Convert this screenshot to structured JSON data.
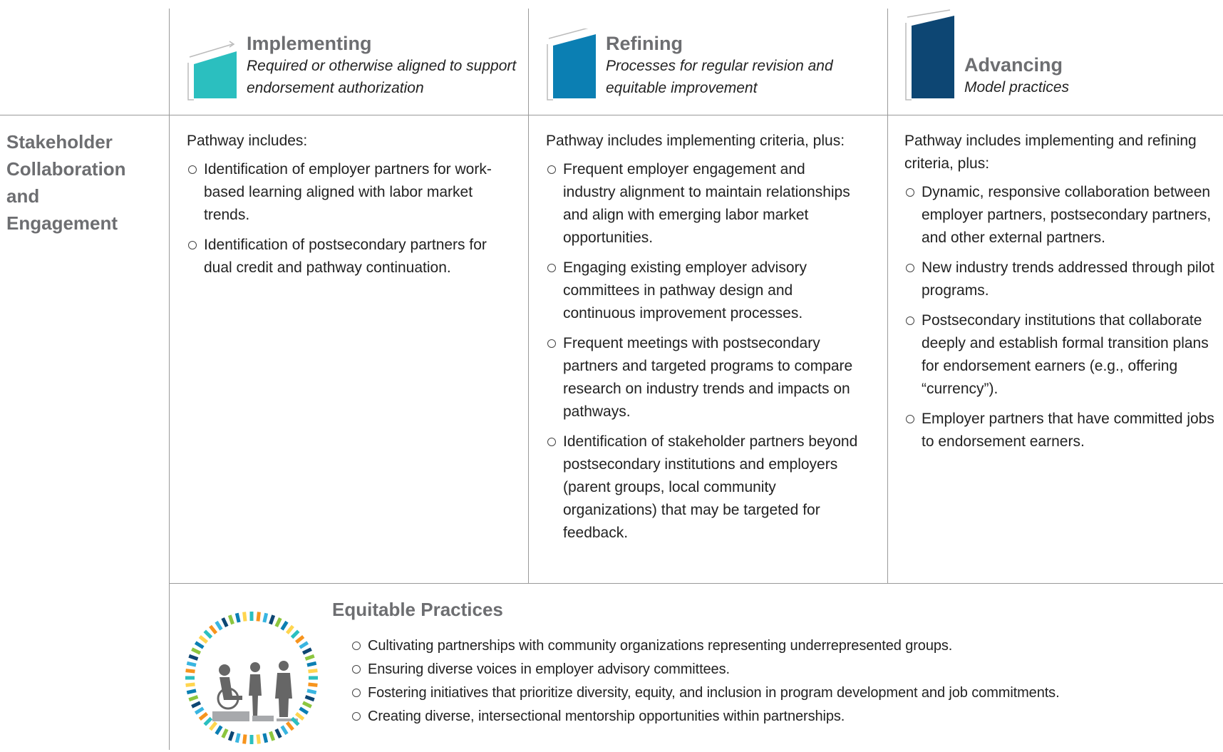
{
  "columns": [
    {
      "title": "Implementing",
      "subtitle": "Required or otherwise aligned to support endorsement authorization"
    },
    {
      "title": "Refining",
      "subtitle": "Processes for regular revision and equitable improvement"
    },
    {
      "title": "Advancing",
      "subtitle": "Model practices"
    }
  ],
  "rows": [
    {
      "label": "Stakeholder Collaboration and Engagement",
      "cells": [
        {
          "intro": "Pathway includes:",
          "items": [
            "Identification of employer partners for work-based learning aligned with labor market trends.",
            "Identification of postsecondary partners for dual credit and pathway continuation."
          ]
        },
        {
          "intro": "Pathway includes implementing criteria, plus:",
          "items": [
            "Frequent employer engagement and industry alignment to maintain relationships and align with emerging labor market opportunities.",
            "Engaging existing employer advisory committees in pathway design and continuous improvement processes.",
            "Frequent meetings with postsecondary partners and targeted programs to compare research on industry trends and impacts on pathways.",
            "Identification of stakeholder partners beyond postsecondary institutions and employers (parent groups, local community organizations) that may be targeted for feedback."
          ]
        },
        {
          "intro": "Pathway includes implementing and refining criteria, plus:",
          "items": [
            "Dynamic, responsive collaboration between employer partners, postsecondary partners, and other external partners.",
            "New industry trends addressed through pilot programs.",
            "Postsecondary institutions that collaborate deeply and establish formal transition plans for endorsement earners (e.g., offering “currency”).",
            "Employer partners that have committed jobs to endorsement earners."
          ]
        }
      ]
    }
  ],
  "equitable_practices": {
    "title": "Equitable Practices",
    "items": [
      "Cultivating partnerships with community organizations representing underrepresented groups.",
      "Ensuring diverse voices in employer advisory committees.",
      "Fostering initiatives that prioritize diversity, equity, and inclusion in program development and job commitments.",
      "Creating diverse, intersectional mentorship opportunities within partnerships."
    ]
  }
}
